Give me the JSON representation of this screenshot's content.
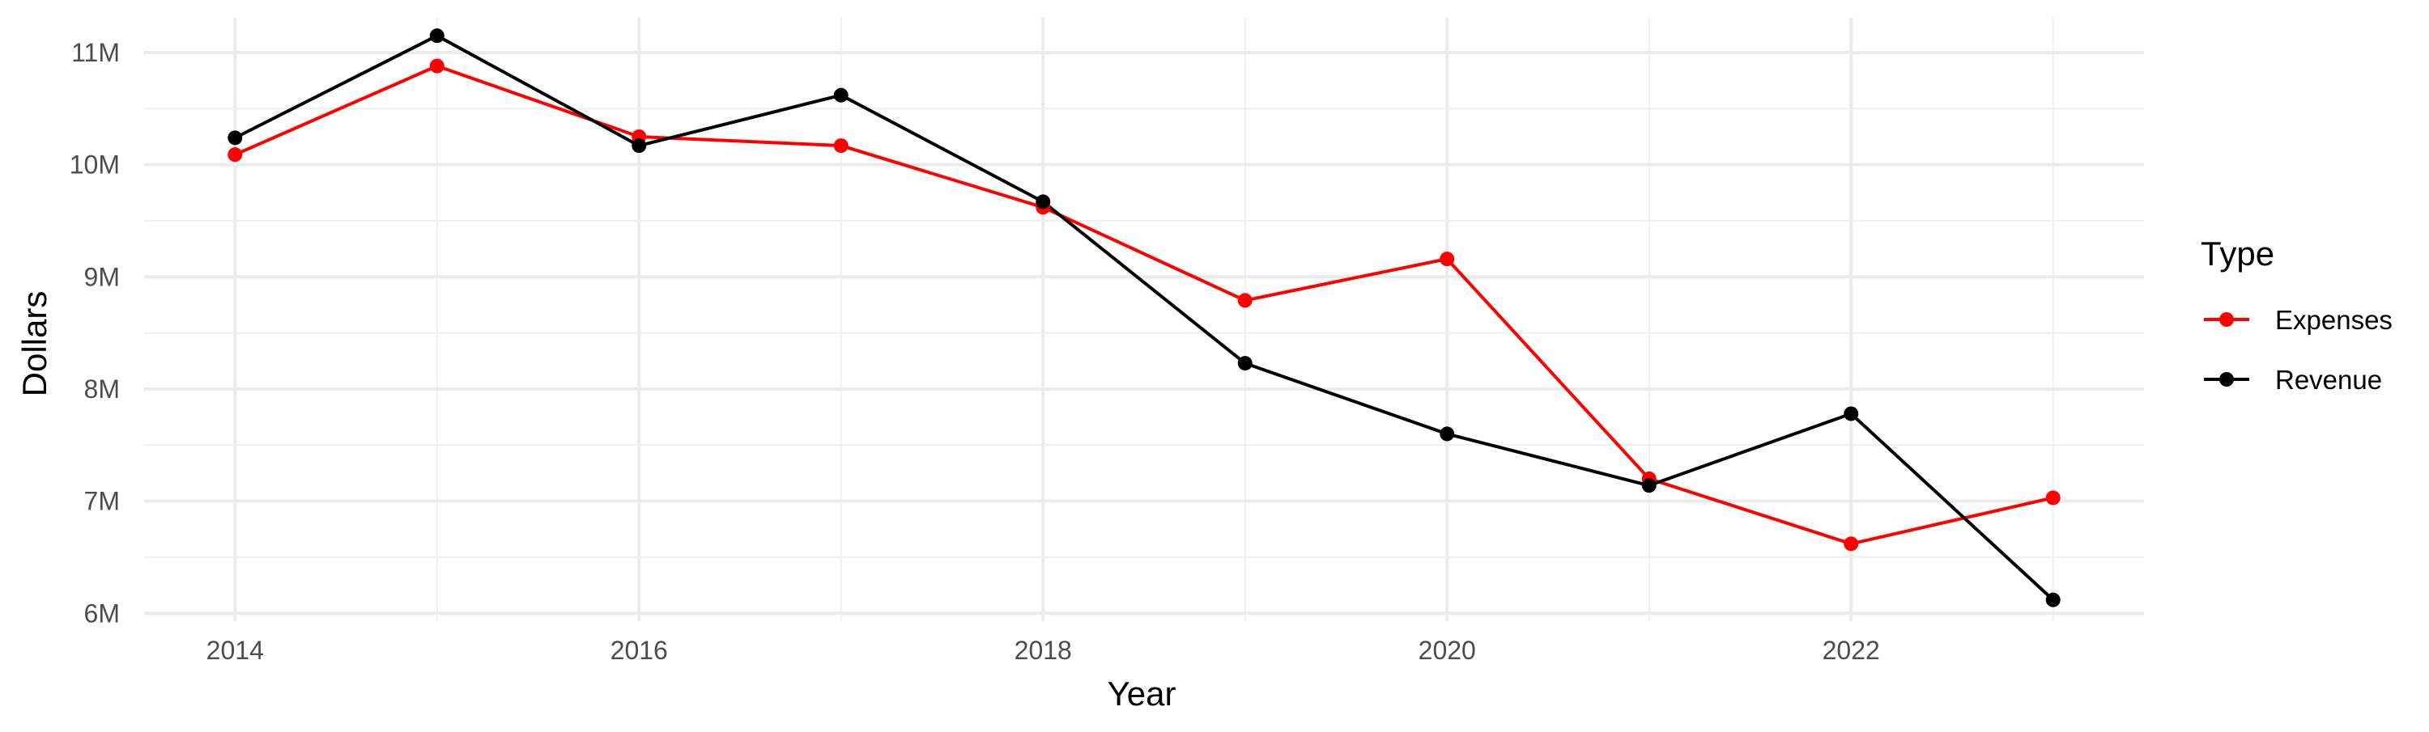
{
  "chart_data": {
    "type": "line",
    "title": "",
    "xlabel": "Year",
    "ylabel": "Dollars",
    "x": [
      2014,
      2015,
      2016,
      2017,
      2018,
      2019,
      2020,
      2021,
      2022,
      2023
    ],
    "x_ticks": [
      2014,
      2016,
      2018,
      2020,
      2022
    ],
    "x_tick_labels": [
      "2014",
      "2016",
      "2018",
      "2020",
      "2022"
    ],
    "xlim": [
      2013.55,
      2023.45
    ],
    "y_ticks": [
      6000000,
      7000000,
      8000000,
      9000000,
      10000000,
      11000000
    ],
    "y_tick_labels": [
      "6M",
      "7M",
      "8M",
      "9M",
      "10M",
      "11M"
    ],
    "ylim": [
      5930000,
      11310000
    ],
    "grid": true,
    "legend": {
      "title": "Type",
      "position": "right"
    },
    "series": [
      {
        "name": "Expenses",
        "color": "#ff0000",
        "values": [
          10090000,
          10880000,
          10250000,
          10170000,
          9620000,
          8790000,
          9160000,
          7200000,
          6620000,
          7030000
        ]
      },
      {
        "name": "Revenue",
        "color": "#000000",
        "values": [
          10240000,
          11150000,
          10170000,
          10620000,
          9670000,
          8230000,
          7600000,
          7140000,
          7780000,
          6120000
        ]
      }
    ]
  }
}
